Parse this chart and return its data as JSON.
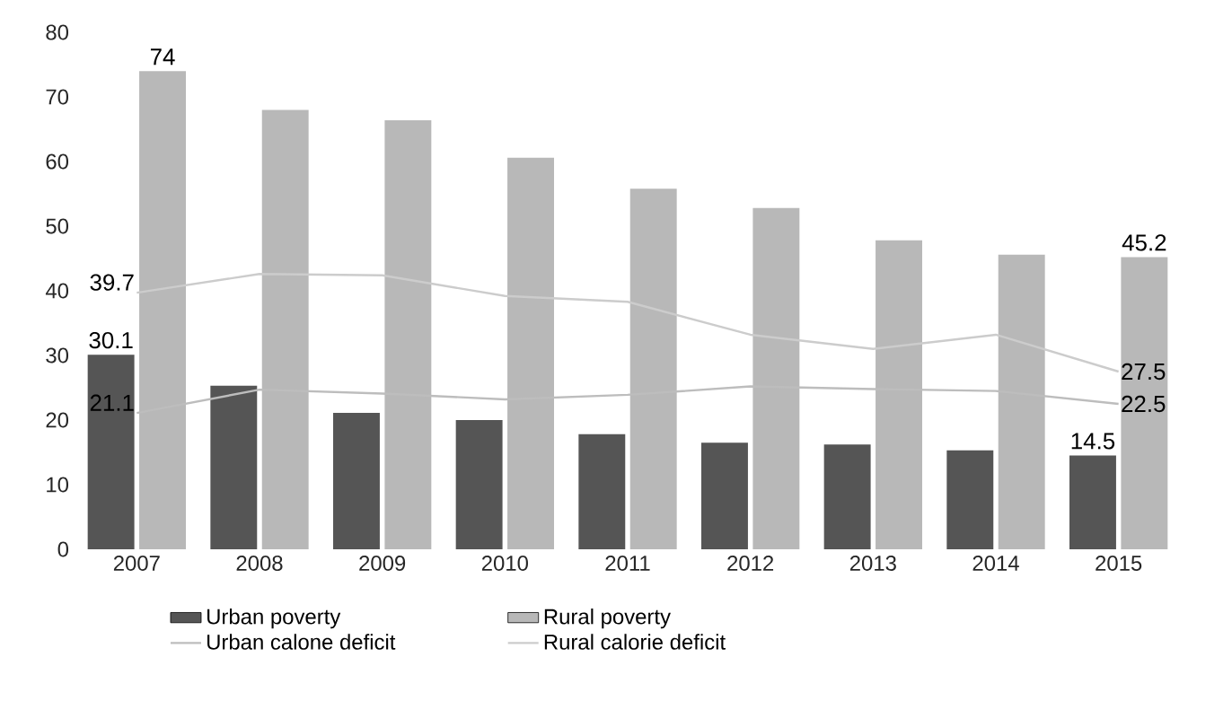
{
  "chart_data": {
    "type": "bar",
    "categories": [
      "2007",
      "2008",
      "2009",
      "2010",
      "2011",
      "2012",
      "2013",
      "2014",
      "2015"
    ],
    "series": [
      {
        "name": "Urban poverty",
        "color": "#555555",
        "values": [
          30.1,
          25.3,
          21.1,
          20,
          17.8,
          16.5,
          16.2,
          15.3,
          14.5
        ],
        "value_labels": [
          "30.1",
          null,
          null,
          null,
          null,
          null,
          null,
          null,
          "14.5"
        ]
      },
      {
        "name": "Rural poverty",
        "color": "#b8b8b8",
        "values": [
          74,
          68,
          66.4,
          60.6,
          55.8,
          52.8,
          47.8,
          45.6,
          45.2
        ],
        "value_labels": [
          "74",
          null,
          null,
          null,
          null,
          null,
          null,
          null,
          "45.2"
        ]
      },
      {
        "name": "Urban calone deficit",
        "type": "line",
        "color": "#bdbdbd",
        "values": [
          21.1,
          24.7,
          24.1,
          23.2,
          23.9,
          25.2,
          24.8,
          24.5,
          22.5
        ],
        "value_labels": [
          "21.1",
          null,
          null,
          null,
          null,
          null,
          null,
          null,
          "22.5"
        ]
      },
      {
        "name": "Rural calorie deficit",
        "type": "line",
        "color": "#cccccc",
        "values": [
          39.7,
          42.6,
          42.4,
          39.2,
          38.3,
          33.2,
          31,
          33.2,
          27.5
        ],
        "value_labels": [
          "39.7",
          null,
          null,
          null,
          null,
          null,
          null,
          null,
          "27.5"
        ]
      }
    ],
    "ylim": [
      0,
      80
    ],
    "yticks": [
      0,
      10,
      20,
      30,
      40,
      50,
      60,
      70,
      80
    ],
    "grid": false,
    "legend": "bottom"
  }
}
